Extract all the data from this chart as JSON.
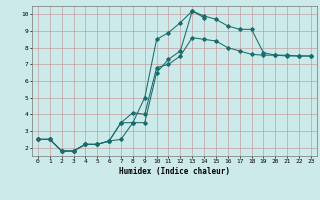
{
  "xlabel": "Humidex (Indice chaleur)",
  "ylabel": "",
  "bg_color": "#cceaea",
  "line_color": "#1a6b6b",
  "xlim": [
    -0.5,
    23.5
  ],
  "ylim": [
    1.5,
    10.5
  ],
  "xticks": [
    0,
    1,
    2,
    3,
    4,
    5,
    6,
    7,
    8,
    9,
    10,
    11,
    12,
    13,
    14,
    15,
    16,
    17,
    18,
    19,
    20,
    21,
    22,
    23
  ],
  "yticks": [
    2,
    3,
    4,
    5,
    6,
    7,
    8,
    9,
    10
  ],
  "line1_x": [
    0,
    1,
    2,
    3,
    4,
    5,
    6,
    7,
    8,
    9,
    10,
    11,
    12,
    13,
    14
  ],
  "line1_y": [
    2.5,
    2.5,
    1.8,
    1.8,
    2.2,
    2.2,
    2.4,
    3.5,
    3.5,
    5.0,
    8.5,
    8.9,
    9.5,
    10.2,
    9.8
  ],
  "line2_x": [
    0,
    1,
    2,
    3,
    4,
    5,
    6,
    7,
    8,
    9,
    10,
    11,
    12,
    13,
    14,
    15,
    16,
    17,
    18,
    19,
    20,
    21,
    22,
    23
  ],
  "line2_y": [
    2.5,
    2.5,
    1.8,
    1.8,
    2.2,
    2.2,
    2.4,
    2.5,
    3.5,
    3.5,
    6.5,
    7.3,
    7.8,
    10.2,
    9.9,
    9.7,
    9.3,
    9.1,
    9.1,
    7.7,
    7.55,
    7.55,
    7.5,
    7.5
  ],
  "line3_x": [
    0,
    1,
    2,
    3,
    4,
    5,
    6,
    7,
    8,
    9,
    10,
    11,
    12,
    13,
    14,
    15,
    16,
    17,
    18,
    19,
    20,
    21,
    22,
    23
  ],
  "line3_y": [
    2.5,
    2.5,
    1.8,
    1.8,
    2.2,
    2.2,
    2.4,
    3.5,
    4.1,
    4.0,
    6.8,
    7.0,
    7.5,
    8.6,
    8.5,
    8.4,
    8.0,
    7.8,
    7.6,
    7.55,
    7.55,
    7.5,
    7.5,
    7.5
  ]
}
